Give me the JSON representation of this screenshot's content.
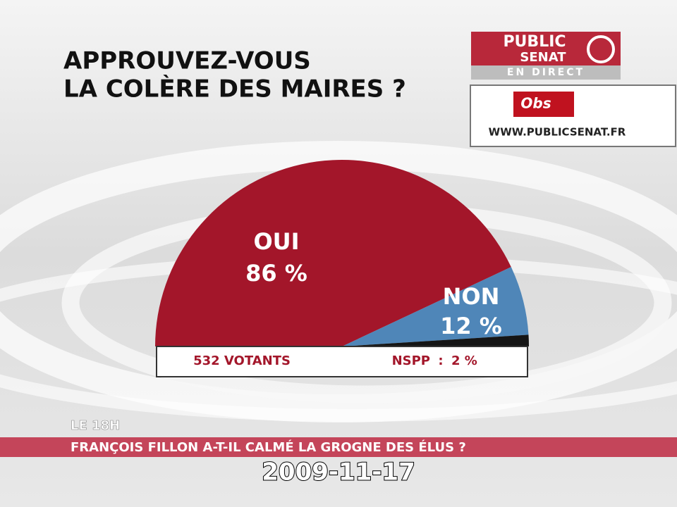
{
  "chart_data": {
    "type": "pie",
    "shape": "semicircle",
    "title": [
      "APPROUVEZ-VOUS",
      "LA COLÈRE DES MAIRES ?"
    ],
    "categories": [
      "OUI",
      "NON",
      "NSPP"
    ],
    "values": [
      86,
      12,
      2
    ],
    "value_labels": [
      "86 %",
      "12 %",
      "2 %"
    ],
    "colors": [
      "#a3162a",
      "#4f86b8",
      "#151515"
    ],
    "note": "532 VOTANTS"
  },
  "branding": {
    "channel": [
      "PUBLIC",
      "SENAT"
    ],
    "status": "EN DIRECT",
    "partner": "Obs",
    "url": "WWW.PUBLICSENAT.FR"
  },
  "ticker": {
    "program": "LE 18H",
    "headline": "FRANÇOIS FILLON A-T-IL CALMÉ LA GROGNE DES ÉLUS ?"
  },
  "timestamp": "2009-11-17"
}
